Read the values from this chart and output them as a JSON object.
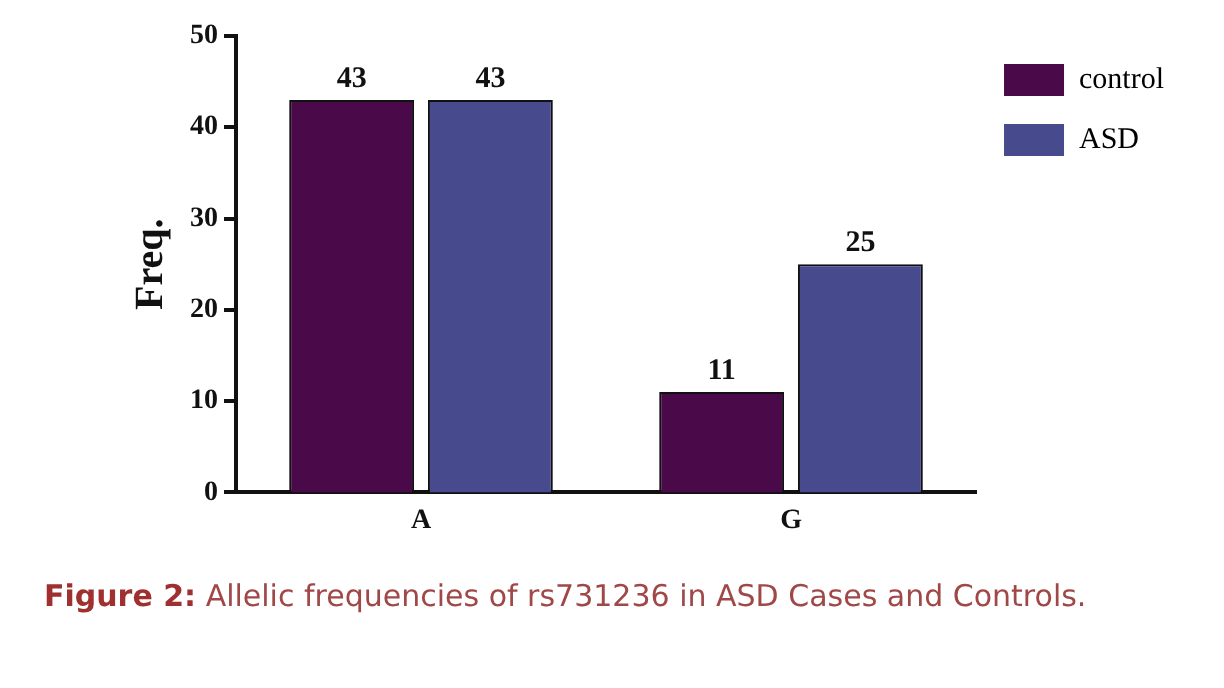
{
  "chart_data": {
    "type": "bar",
    "ylabel": "Freq.",
    "categories": [
      "A",
      "G"
    ],
    "series": [
      {
        "name": "control",
        "color": "#4a0a4a",
        "values": [
          43,
          11
        ]
      },
      {
        "name": "ASD",
        "color": "#474b8e",
        "values": [
          43,
          25
        ]
      }
    ],
    "ylim": [
      0,
      50
    ],
    "yticks": [
      0,
      10,
      20,
      30,
      40,
      50
    ],
    "grid": false,
    "legend": "top right",
    "data_labels": true,
    "annotations": [
      "Figure 2: Allelic frequencies of rs731236 in ASD Cases and Controls."
    ]
  }
}
